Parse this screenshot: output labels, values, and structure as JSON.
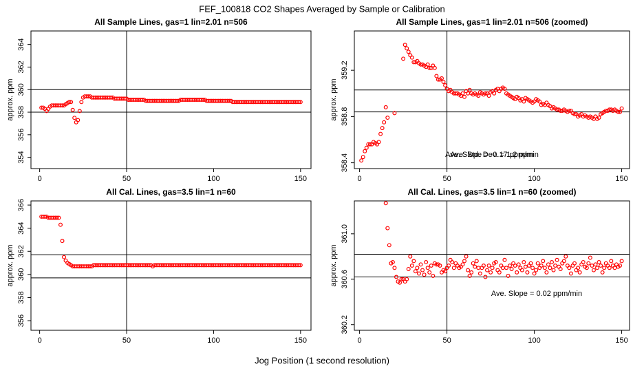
{
  "title": "FEF_100818  CO2 Shapes Averaged by Sample or Calibration",
  "xlabel": "Jog Position (1 second resolution)",
  "chart_data": [
    {
      "type": "scatter",
      "title": "All Sample Lines, gas=1 lin=2.01 n=506",
      "ylabel": "approx. ppm",
      "color": "#ff0000",
      "xlim": [
        -5,
        156
      ],
      "ylim": [
        353.0,
        365.2
      ],
      "xticks": [
        0,
        50,
        100,
        150
      ],
      "yticks": [
        354,
        356,
        358,
        360,
        362,
        364
      ],
      "hlines": [
        358,
        360
      ],
      "vlines": [
        50
      ],
      "x": [
        1,
        2,
        3,
        4,
        5,
        6,
        7,
        8,
        9,
        10,
        11,
        12,
        13,
        14,
        15,
        16,
        17,
        18,
        19,
        20,
        21,
        22,
        23,
        24,
        25,
        26,
        27,
        28,
        29,
        30,
        31,
        32,
        33,
        34,
        35,
        36,
        37,
        38,
        39,
        40,
        41,
        42,
        43,
        44,
        45,
        46,
        47,
        48,
        49,
        50,
        51,
        52,
        53,
        54,
        55,
        56,
        57,
        58,
        59,
        60,
        61,
        62,
        63,
        64,
        65,
        66,
        67,
        68,
        69,
        70,
        71,
        72,
        73,
        74,
        75,
        76,
        77,
        78,
        79,
        80,
        81,
        82,
        83,
        84,
        85,
        86,
        87,
        88,
        89,
        90,
        91,
        92,
        93,
        94,
        95,
        96,
        97,
        98,
        99,
        100,
        101,
        102,
        103,
        104,
        105,
        106,
        107,
        108,
        109,
        110,
        111,
        112,
        113,
        114,
        115,
        116,
        117,
        118,
        119,
        120,
        121,
        122,
        123,
        124,
        125,
        126,
        127,
        128,
        129,
        130,
        131,
        132,
        133,
        134,
        135,
        136,
        137,
        138,
        139,
        140,
        141,
        142,
        143,
        144,
        145,
        146,
        147,
        148,
        149,
        150
      ],
      "values": [
        358.4,
        358.4,
        358.3,
        358.1,
        358.3,
        358.5,
        358.6,
        358.6,
        358.6,
        358.6,
        358.6,
        358.6,
        358.6,
        358.6,
        358.7,
        358.8,
        358.9,
        358.9,
        358.2,
        357.5,
        357.1,
        357.3,
        358.1,
        358.9,
        359.3,
        359.4,
        359.4,
        359.4,
        359.4,
        359.3,
        359.3,
        359.3,
        359.3,
        359.3,
        359.3,
        359.3,
        359.3,
        359.3,
        359.3,
        359.3,
        359.3,
        359.3,
        359.2,
        359.2,
        359.2,
        359.2,
        359.2,
        359.2,
        359.2,
        359.2,
        359.1,
        359.1,
        359.1,
        359.1,
        359.1,
        359.1,
        359.1,
        359.1,
        359.1,
        359.1,
        359.0,
        359.0,
        359.0,
        359.0,
        359.0,
        359.0,
        359.0,
        359.0,
        359.0,
        359.0,
        359.0,
        359.0,
        359.0,
        359.0,
        359.0,
        359.0,
        359.0,
        359.0,
        359.0,
        359.0,
        359.1,
        359.1,
        359.1,
        359.1,
        359.1,
        359.1,
        359.1,
        359.1,
        359.1,
        359.1,
        359.1,
        359.1,
        359.1,
        359.1,
        359.1,
        359.0,
        359.0,
        359.0,
        359.0,
        359.0,
        359.0,
        359.0,
        359.0,
        359.0,
        359.0,
        359.0,
        359.0,
        359.0,
        359.0,
        359.0,
        358.9,
        358.9,
        358.9,
        358.9,
        358.9,
        358.9,
        358.9,
        358.9,
        358.9,
        358.9,
        358.9,
        358.9,
        358.9,
        358.9,
        358.9,
        358.9,
        358.9,
        358.9,
        358.9,
        358.9,
        358.9,
        358.9,
        358.9,
        358.9,
        358.9,
        358.9,
        358.9,
        358.9,
        358.9,
        358.9,
        358.9,
        358.9,
        358.9,
        358.9,
        358.9,
        358.9,
        358.9,
        358.9,
        358.9,
        358.9
      ]
    },
    {
      "type": "scatter",
      "title": "All Sample Lines, gas=1 lin=2.01 n=506 (zoomed)",
      "ylabel": "approx. ppm",
      "color": "#ff0000",
      "xlim": [
        -3,
        154.5
      ],
      "ylim": [
        358.35,
        359.54
      ],
      "xticks": [
        0,
        50,
        100,
        150
      ],
      "yticks": [
        358.4,
        358.8,
        359.2
      ],
      "hlines": [
        358.84,
        359.03
      ],
      "vlines": [
        50
      ],
      "annotations": [
        "Ave. Slope =  -0.17  ppm/min",
        "Ave. Std. Dev. =  1.2  ppm"
      ],
      "x": [
        1,
        2,
        3,
        4,
        5,
        6,
        7,
        8,
        9,
        10,
        11,
        12,
        13,
        14,
        15,
        16,
        17,
        18,
        19,
        20,
        21,
        22,
        23,
        24,
        25,
        26,
        27,
        28,
        29,
        30,
        31,
        32,
        33,
        34,
        35,
        36,
        37,
        38,
        39,
        40,
        41,
        42,
        43,
        44,
        45,
        46,
        47,
        48,
        49,
        50,
        51,
        52,
        53,
        54,
        55,
        56,
        57,
        58,
        59,
        60,
        61,
        62,
        63,
        64,
        65,
        66,
        67,
        68,
        69,
        70,
        71,
        72,
        73,
        74,
        75,
        76,
        77,
        78,
        79,
        80,
        81,
        82,
        83,
        84,
        85,
        86,
        87,
        88,
        89,
        90,
        91,
        92,
        93,
        94,
        95,
        96,
        97,
        98,
        99,
        100,
        101,
        102,
        103,
        104,
        105,
        106,
        107,
        108,
        109,
        110,
        111,
        112,
        113,
        114,
        115,
        116,
        117,
        118,
        119,
        120,
        121,
        122,
        123,
        124,
        125,
        126,
        127,
        128,
        129,
        130,
        131,
        132,
        133,
        134,
        135,
        136,
        137,
        138,
        139,
        140,
        141,
        142,
        143,
        144,
        145,
        146,
        147,
        148,
        149,
        150
      ],
      "values": [
        358.42,
        358.45,
        358.5,
        358.53,
        358.56,
        358.56,
        358.56,
        358.58,
        358.57,
        358.56,
        358.58,
        358.65,
        358.7,
        358.75,
        358.88,
        358.79,
        null,
        null,
        null,
        358.83,
        null,
        null,
        null,
        null,
        359.3,
        359.42,
        359.39,
        359.36,
        359.33,
        359.31,
        359.27,
        359.27,
        359.28,
        359.26,
        359.25,
        359.25,
        359.24,
        359.23,
        359.25,
        359.22,
        359.22,
        359.24,
        359.22,
        359.15,
        359.12,
        359.12,
        359.13,
        359.1,
        359.07,
        359.04,
        359.02,
        359.03,
        359.01,
        359.0,
        359.0,
        359.0,
        358.99,
        358.98,
        359.0,
        358.97,
        359.02,
        359.0,
        359.03,
        359.0,
        358.99,
        359.0,
        358.99,
        358.98,
        359.01,
        359.0,
        358.99,
        359.0,
        359.0,
        358.98,
        359.01,
        359.02,
        359.0,
        359.03,
        359.04,
        359.02,
        359.04,
        359.05,
        359.04,
        359.0,
        358.99,
        358.98,
        358.97,
        358.96,
        358.95,
        358.97,
        358.96,
        358.94,
        358.95,
        358.93,
        358.96,
        358.95,
        358.94,
        358.93,
        358.92,
        358.93,
        358.95,
        358.94,
        358.93,
        358.9,
        358.91,
        358.9,
        358.92,
        358.9,
        358.89,
        358.87,
        358.88,
        358.87,
        358.86,
        358.86,
        358.85,
        358.85,
        358.86,
        358.85,
        358.84,
        358.85,
        358.85,
        358.83,
        358.82,
        358.82,
        358.8,
        358.81,
        358.82,
        358.8,
        358.81,
        358.8,
        358.79,
        358.8,
        358.79,
        358.78,
        358.8,
        358.78,
        358.79,
        358.82,
        358.83,
        358.84,
        358.85,
        358.85,
        358.86,
        358.86,
        358.85,
        358.86,
        358.85,
        358.84,
        358.84,
        358.87
      ]
    },
    {
      "type": "scatter",
      "title": "All Cal. Lines, gas=3.5 lin=1 n=60",
      "ylabel": "approx. ppm",
      "color": "#ff0000",
      "xlim": [
        -5,
        156
      ],
      "ylim": [
        355.17,
        366.36
      ],
      "xticks": [
        0,
        50,
        100,
        150
      ],
      "yticks": [
        356,
        358,
        360,
        362,
        364,
        366
      ],
      "hlines": [
        359.7,
        361.7
      ],
      "vlines": [
        50
      ],
      "x": [
        1,
        2,
        3,
        4,
        5,
        6,
        7,
        8,
        9,
        10,
        11,
        12,
        13,
        14,
        15,
        16,
        17,
        18,
        19,
        20,
        21,
        22,
        23,
        24,
        25,
        26,
        27,
        28,
        29,
        30,
        31,
        32,
        33,
        34,
        35,
        36,
        37,
        38,
        39,
        40,
        41,
        42,
        43,
        44,
        45,
        46,
        47,
        48,
        49,
        50,
        51,
        52,
        53,
        54,
        55,
        56,
        57,
        58,
        59,
        60,
        61,
        62,
        63,
        64,
        65,
        66,
        67,
        68,
        69,
        70,
        71,
        72,
        73,
        74,
        75,
        76,
        77,
        78,
        79,
        80,
        81,
        82,
        83,
        84,
        85,
        86,
        87,
        88,
        89,
        90,
        91,
        92,
        93,
        94,
        95,
        96,
        97,
        98,
        99,
        100,
        101,
        102,
        103,
        104,
        105,
        106,
        107,
        108,
        109,
        110,
        111,
        112,
        113,
        114,
        115,
        116,
        117,
        118,
        119,
        120,
        121,
        122,
        123,
        124,
        125,
        126,
        127,
        128,
        129,
        130,
        131,
        132,
        133,
        134,
        135,
        136,
        137,
        138,
        139,
        140,
        141,
        142,
        143,
        144,
        145,
        146,
        147,
        148,
        149,
        150
      ],
      "values": [
        365.0,
        365.0,
        365.0,
        365.0,
        364.9,
        364.9,
        364.9,
        364.9,
        364.9,
        364.9,
        364.9,
        364.3,
        362.9,
        361.5,
        361.2,
        361.0,
        360.9,
        360.8,
        360.7,
        360.7,
        360.7,
        360.7,
        360.7,
        360.7,
        360.7,
        360.7,
        360.7,
        360.7,
        360.7,
        360.7,
        360.8,
        360.8,
        360.8,
        360.8,
        360.8,
        360.8,
        360.8,
        360.8,
        360.8,
        360.8,
        360.8,
        360.8,
        360.8,
        360.8,
        360.8,
        360.8,
        360.8,
        360.8,
        360.8,
        360.8,
        360.8,
        360.8,
        360.8,
        360.8,
        360.8,
        360.8,
        360.8,
        360.8,
        360.8,
        360.8,
        360.8,
        360.8,
        360.8,
        360.8,
        360.7,
        360.8,
        360.8,
        360.8,
        360.8,
        360.8,
        360.8,
        360.8,
        360.8,
        360.8,
        360.8,
        360.8,
        360.8,
        360.8,
        360.8,
        360.8,
        360.8,
        360.8,
        360.8,
        360.8,
        360.8,
        360.8,
        360.8,
        360.8,
        360.8,
        360.8,
        360.8,
        360.8,
        360.8,
        360.8,
        360.8,
        360.8,
        360.8,
        360.8,
        360.8,
        360.8,
        360.8,
        360.8,
        360.8,
        360.8,
        360.8,
        360.8,
        360.8,
        360.8,
        360.8,
        360.8,
        360.8,
        360.8,
        360.8,
        360.8,
        360.8,
        360.8,
        360.8,
        360.8,
        360.8,
        360.8,
        360.8,
        360.8,
        360.8,
        360.8,
        360.8,
        360.8,
        360.8,
        360.8,
        360.8,
        360.8,
        360.8,
        360.8,
        360.8,
        360.8,
        360.8,
        360.8,
        360.8,
        360.8,
        360.8,
        360.8,
        360.8,
        360.8,
        360.8,
        360.8,
        360.8,
        360.8,
        360.8,
        360.8,
        360.8,
        360.8
      ]
    },
    {
      "type": "scatter",
      "title": "All Cal. Lines, gas=3.5 lin=1 n=60 (zoomed)",
      "ylabel": "approx. ppm",
      "color": "#ff0000",
      "xlim": [
        -3,
        154.5
      ],
      "ylim": [
        360.15,
        361.29
      ],
      "xticks": [
        0,
        50,
        100,
        150
      ],
      "yticks": [
        360.2,
        360.6,
        {
          "value": 361,
          "label": "361.0"
        }
      ],
      "hlines": [
        360.62,
        360.82
      ],
      "vlines": [
        50
      ],
      "annotations": [
        "Ave. Slope =  0.02  ppm/min"
      ],
      "x": [
        15,
        16,
        17,
        18,
        19,
        20,
        21,
        22,
        23,
        24,
        25,
        26,
        27,
        28,
        29,
        30,
        31,
        32,
        33,
        34,
        35,
        36,
        37,
        38,
        39,
        40,
        41,
        42,
        43,
        44,
        45,
        46,
        47,
        48,
        49,
        50,
        51,
        52,
        53,
        54,
        55,
        56,
        57,
        58,
        59,
        60,
        61,
        62,
        63,
        64,
        65,
        66,
        67,
        68,
        69,
        70,
        71,
        72,
        73,
        74,
        75,
        76,
        77,
        78,
        79,
        80,
        81,
        82,
        83,
        84,
        85,
        86,
        87,
        88,
        89,
        90,
        91,
        92,
        93,
        94,
        95,
        96,
        97,
        98,
        99,
        100,
        101,
        102,
        103,
        104,
        105,
        106,
        107,
        108,
        109,
        110,
        111,
        112,
        113,
        114,
        115,
        116,
        117,
        118,
        119,
        120,
        121,
        122,
        123,
        124,
        125,
        126,
        127,
        128,
        129,
        130,
        131,
        132,
        133,
        134,
        135,
        136,
        137,
        138,
        139,
        140,
        141,
        142,
        143,
        144,
        145,
        146,
        147,
        148,
        149,
        150
      ],
      "values": [
        361.27,
        361.05,
        360.9,
        360.74,
        360.75,
        360.7,
        360.62,
        360.58,
        360.57,
        360.6,
        360.6,
        360.58,
        360.6,
        360.69,
        360.8,
        360.72,
        360.76,
        360.67,
        360.7,
        360.65,
        360.73,
        360.68,
        360.64,
        360.75,
        360.7,
        360.66,
        360.72,
        360.63,
        360.74,
        360.73,
        360.73,
        360.72,
        360.66,
        360.68,
        360.67,
        360.7,
        360.72,
        360.77,
        360.75,
        360.7,
        360.74,
        360.72,
        360.7,
        360.71,
        360.73,
        360.76,
        360.8,
        360.68,
        360.63,
        360.66,
        360.74,
        360.71,
        360.76,
        360.7,
        360.65,
        360.7,
        360.72,
        360.62,
        360.68,
        360.72,
        360.66,
        360.7,
        360.74,
        360.75,
        360.68,
        360.66,
        360.72,
        360.7,
        360.77,
        360.7,
        360.63,
        360.72,
        360.69,
        360.74,
        360.72,
        360.66,
        360.73,
        360.7,
        360.68,
        360.75,
        360.71,
        360.66,
        360.72,
        360.74,
        360.7,
        360.65,
        360.68,
        360.74,
        360.7,
        360.72,
        360.76,
        360.7,
        360.66,
        360.73,
        360.7,
        360.75,
        360.68,
        360.72,
        360.77,
        360.71,
        360.69,
        360.74,
        360.76,
        360.8,
        360.72,
        360.7,
        360.65,
        360.72,
        360.74,
        360.68,
        360.7,
        360.66,
        360.73,
        360.75,
        360.71,
        360.7,
        360.74,
        360.79,
        360.72,
        360.68,
        360.73,
        360.7,
        360.75,
        360.72,
        360.66,
        360.7,
        360.74,
        360.72,
        360.7,
        360.76,
        360.72,
        360.7,
        360.73,
        360.71,
        360.72,
        360.76
      ]
    }
  ]
}
